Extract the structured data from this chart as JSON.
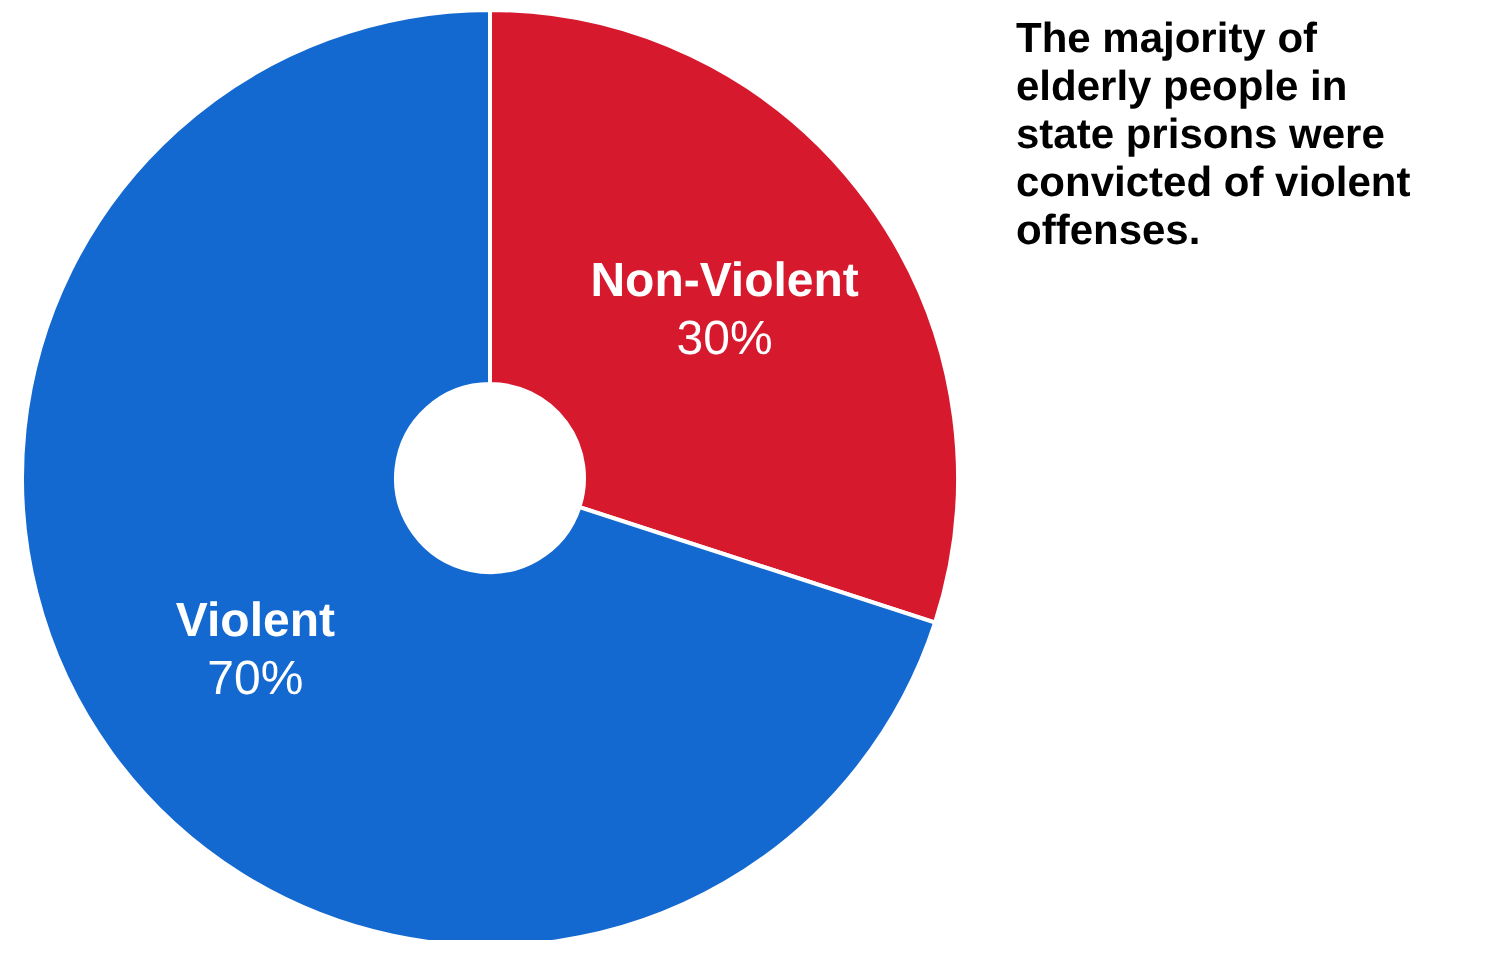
{
  "chart_data": {
    "type": "donut",
    "title": "The majority of elderly people in state prisons were convicted of violent offenses.",
    "categories": [
      "Non-Violent",
      "Violent"
    ],
    "values": [
      30,
      70
    ],
    "colors": [
      "#d7192e",
      "#1469d1"
    ],
    "value_labels": [
      "30%",
      "70%"
    ]
  }
}
